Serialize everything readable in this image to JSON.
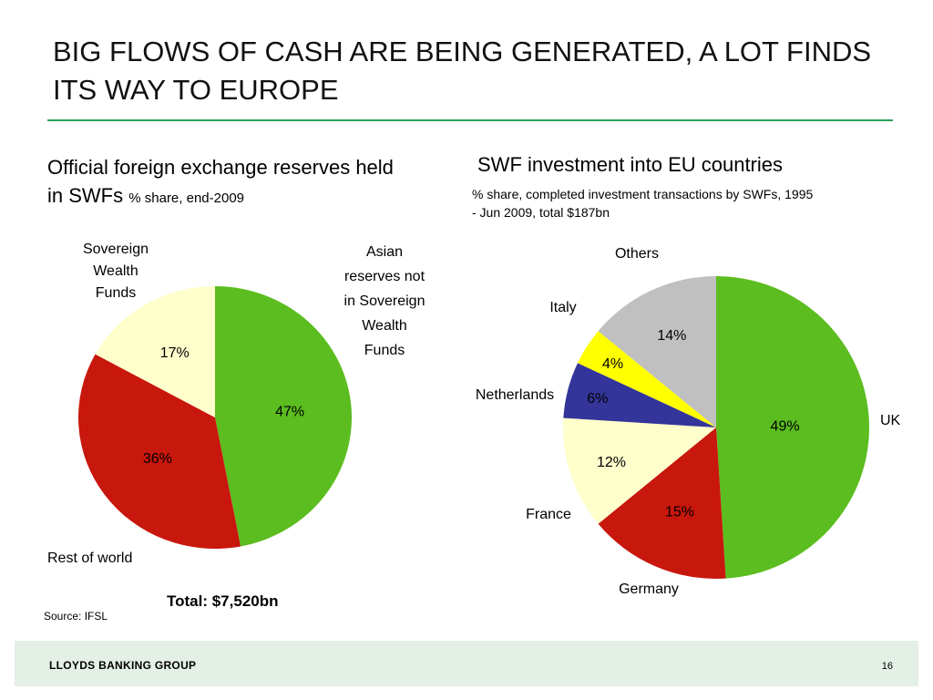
{
  "slide": {
    "title": "BIG FLOWS OF CASH ARE BEING GENERATED, A LOT FINDS ITS WAY TO EUROPE",
    "page_number": "16",
    "footer_brand": "LLOYDS BANKING GROUP",
    "source": "Source: IFSL",
    "total": "Total: $7,520bn"
  },
  "left_chart_heading": {
    "title": "Official foreign exchange reserves held in SWFs",
    "subtitle": "% share, end-2009"
  },
  "right_chart_heading": {
    "title": "SWF investment into EU countries",
    "subtitle": "% share, completed investment transactions by SWFs, 1995 - Jun 2009, total $187bn"
  },
  "chart_data": [
    {
      "type": "pie",
      "title": "Official foreign exchange reserves held in SWFs",
      "subtitle": "% share, end-2009",
      "categories": [
        "Asian reserves not in Sovereign Wealth Funds",
        "Rest of world",
        "Sovereign Wealth Funds"
      ],
      "values": [
        47,
        36,
        17
      ],
      "value_labels": [
        "47%",
        "36%",
        "17%"
      ],
      "colors": [
        "#5bbd1f",
        "#c8170d",
        "#ffffcc"
      ],
      "total_label": "Total: $7,520bn"
    },
    {
      "type": "pie",
      "title": "SWF investment into EU countries",
      "subtitle": "% share, completed investment transactions by SWFs, 1995 - Jun 2009, total $187bn",
      "categories": [
        "UK",
        "Germany",
        "France",
        "Netherlands",
        "Italy",
        "Others"
      ],
      "values": [
        49,
        15,
        12,
        6,
        4,
        14
      ],
      "value_labels": [
        "49%",
        "15%",
        "12%",
        "6%",
        "4%",
        "14%"
      ],
      "colors": [
        "#5bbd1f",
        "#c8170d",
        "#ffffcc",
        "#33359a",
        "#ffff00",
        "#c0c0c0"
      ]
    }
  ]
}
